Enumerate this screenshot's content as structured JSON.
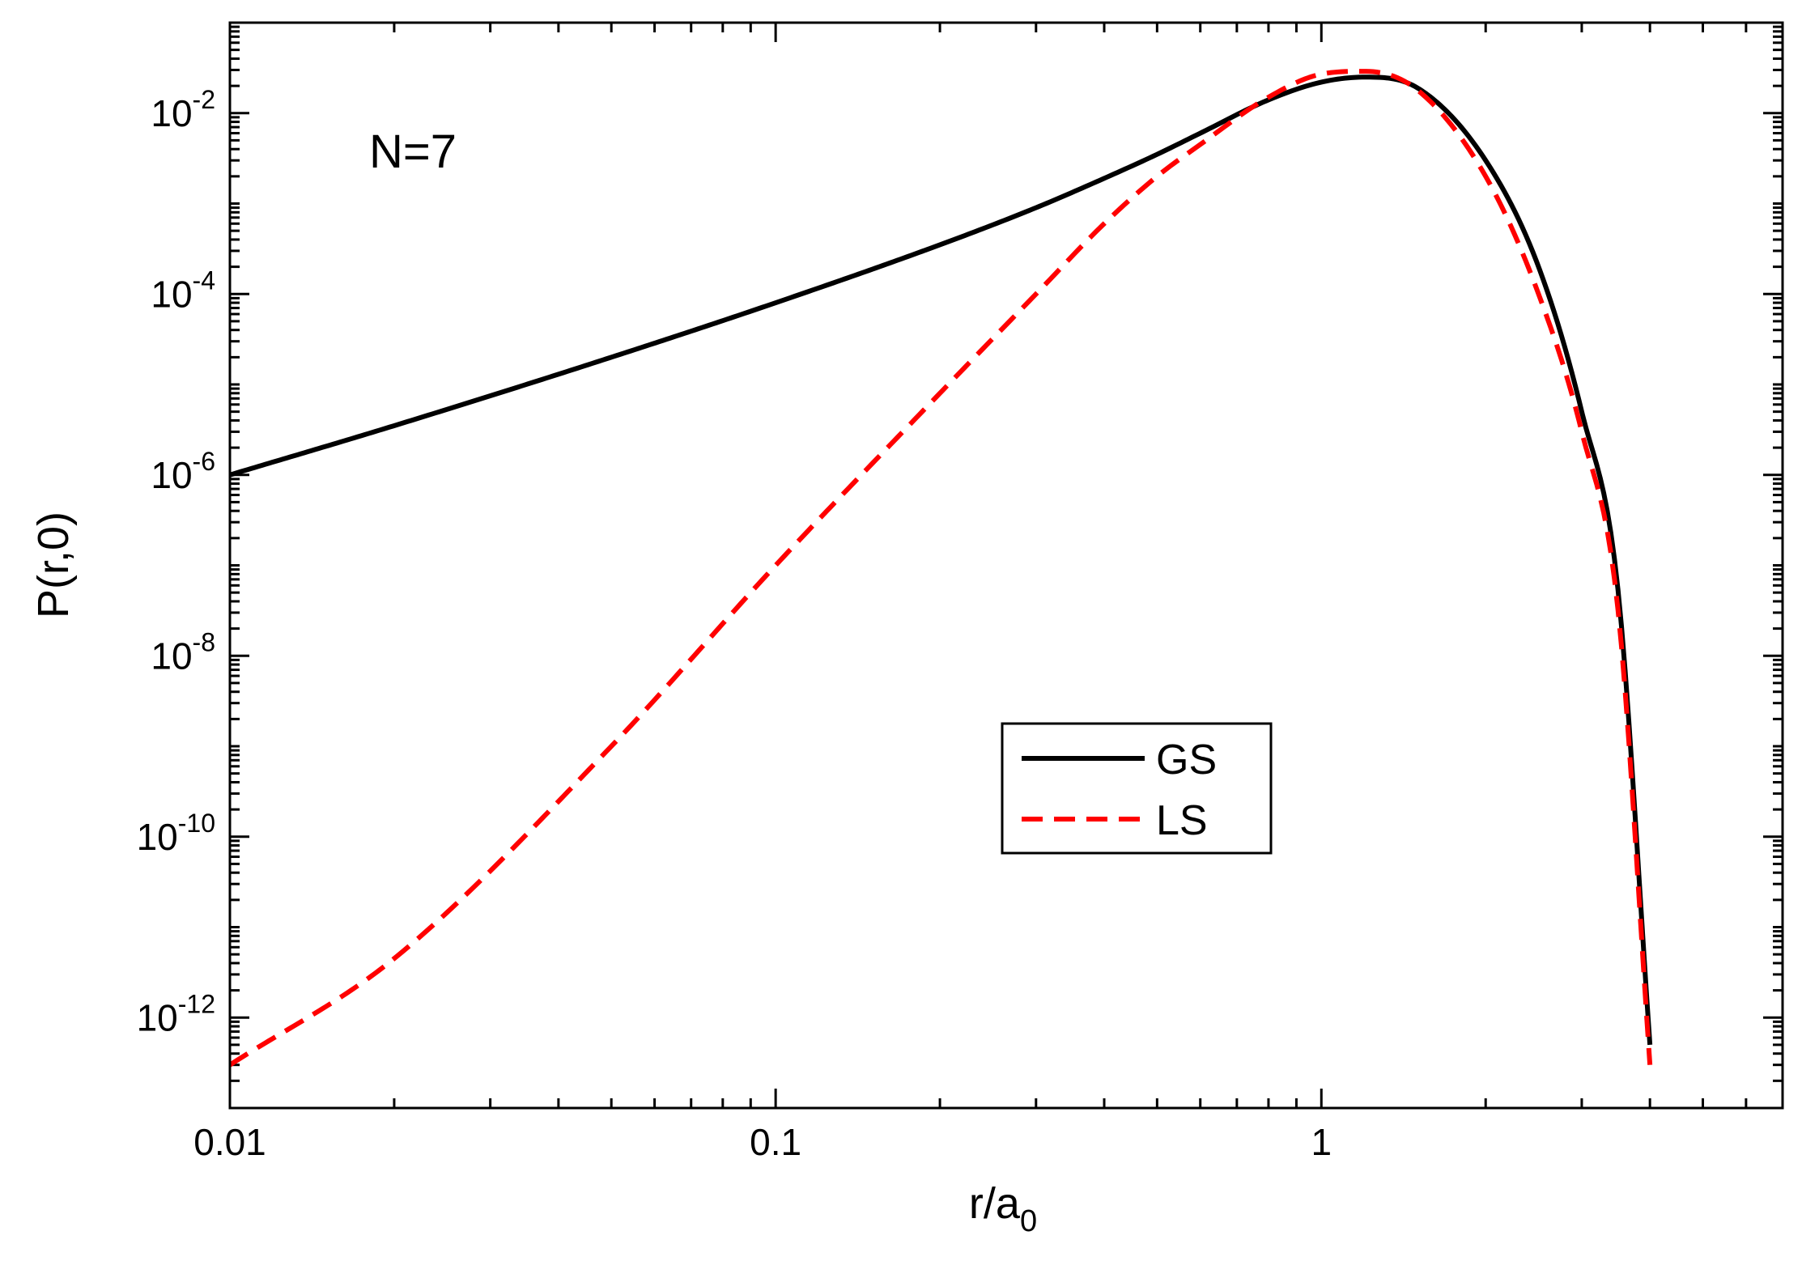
{
  "chart_data": {
    "type": "line",
    "title": "",
    "annotation": "N=7",
    "xlabel": {
      "base": "r/a",
      "sub": "0"
    },
    "ylabel": "P(r,0)",
    "xscale": "log",
    "yscale": "log",
    "xlim": [
      0.01,
      7.0
    ],
    "ylim": [
      1e-13,
      0.1
    ],
    "grid": false,
    "legend_position": "center-right",
    "x_tick_labels": [
      {
        "value": 0.01,
        "label": "0.01"
      },
      {
        "value": 0.1,
        "label": "0.1"
      },
      {
        "value": 1,
        "label": "1"
      }
    ],
    "y_tick_labels": [
      {
        "value": 1e-12,
        "base": "10",
        "exp": "-12"
      },
      {
        "value": 1e-10,
        "base": "10",
        "exp": "-10"
      },
      {
        "value": 1e-08,
        "base": "10",
        "exp": "-8"
      },
      {
        "value": 1e-06,
        "base": "10",
        "exp": "-6"
      },
      {
        "value": 0.0001,
        "base": "10",
        "exp": "-4"
      },
      {
        "value": 0.01,
        "base": "10",
        "exp": "-2"
      }
    ],
    "series": [
      {
        "name": "GS",
        "color": "#000000",
        "dash": "solid",
        "x": [
          0.01,
          0.02,
          0.05,
          0.1,
          0.2,
          0.3,
          0.4,
          0.5,
          0.6,
          0.8,
          1.0,
          1.2,
          1.5,
          2.0,
          2.5,
          3.0,
          3.5,
          4.0
        ],
        "y": [
          1e-06,
          3.5e-06,
          2e-05,
          8e-05,
          0.00035,
          0.0009,
          0.0019,
          0.0035,
          0.006,
          0.014,
          0.022,
          0.025,
          0.019,
          0.003,
          0.0002,
          5e-06,
          5e-08,
          5e-13
        ]
      },
      {
        "name": "LS",
        "color": "#ff0000",
        "dash": "dashed",
        "x": [
          0.01,
          0.02,
          0.05,
          0.1,
          0.2,
          0.3,
          0.4,
          0.5,
          0.6,
          0.8,
          1.0,
          1.2,
          1.5,
          2.0,
          2.5,
          3.0,
          3.5,
          4.0
        ],
        "y": [
          3e-13,
          4.5e-12,
          1e-09,
          1e-07,
          8e-06,
          0.0001,
          0.0006,
          0.002,
          0.0045,
          0.015,
          0.027,
          0.029,
          0.018,
          0.002,
          0.0001,
          3e-06,
          3e-08,
          3e-13
        ]
      }
    ]
  }
}
